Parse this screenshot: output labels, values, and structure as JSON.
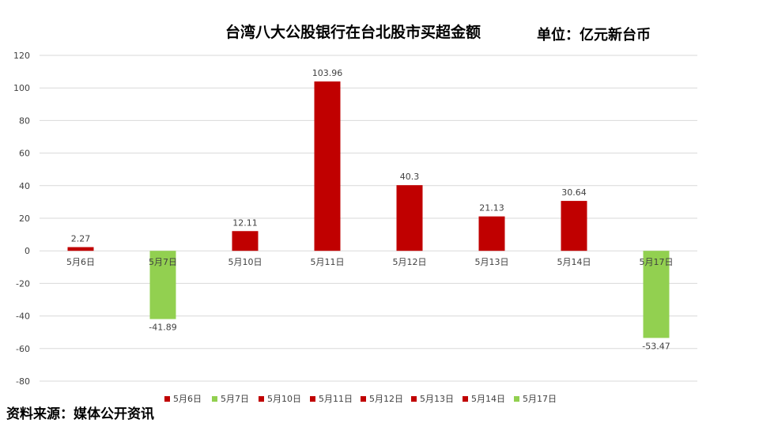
{
  "title": "台湾八大公股银行在台北股市买超金额",
  "unit": "单位：亿元新台币",
  "source": "资料来源：媒体公开资讯",
  "colors": {
    "positive": "#C00000",
    "negative": "#92D050",
    "grid": "#D9D9D9",
    "text": "#404040"
  },
  "chart_data": {
    "type": "bar",
    "categories": [
      "5月6日",
      "5月7日",
      "5月10日",
      "5月11日",
      "5月12日",
      "5月13日",
      "5月14日",
      "5月17日"
    ],
    "values": [
      2.27,
      -41.89,
      12.11,
      103.96,
      40.3,
      21.13,
      30.64,
      -53.47
    ],
    "value_labels": [
      "2.27",
      "-41.89",
      "12.11",
      "103.96",
      "40.3",
      "21.13",
      "30.64",
      "-53.47"
    ],
    "ylim": [
      -80,
      120
    ],
    "yticks": [
      120,
      100,
      80,
      60,
      40,
      20,
      0,
      -20,
      -40,
      -60,
      -80
    ],
    "grid": true,
    "legend": "bottom",
    "legend_entries": [
      {
        "label": "5月6日",
        "color": "#C00000"
      },
      {
        "label": "5月7日",
        "color": "#92D050"
      },
      {
        "label": "5月10日",
        "color": "#C00000"
      },
      {
        "label": "5月11日",
        "color": "#C00000"
      },
      {
        "label": "5月12日",
        "color": "#C00000"
      },
      {
        "label": "5月13日",
        "color": "#C00000"
      },
      {
        "label": "5月14日",
        "color": "#C00000"
      },
      {
        "label": "5月17日",
        "color": "#92D050"
      }
    ]
  }
}
